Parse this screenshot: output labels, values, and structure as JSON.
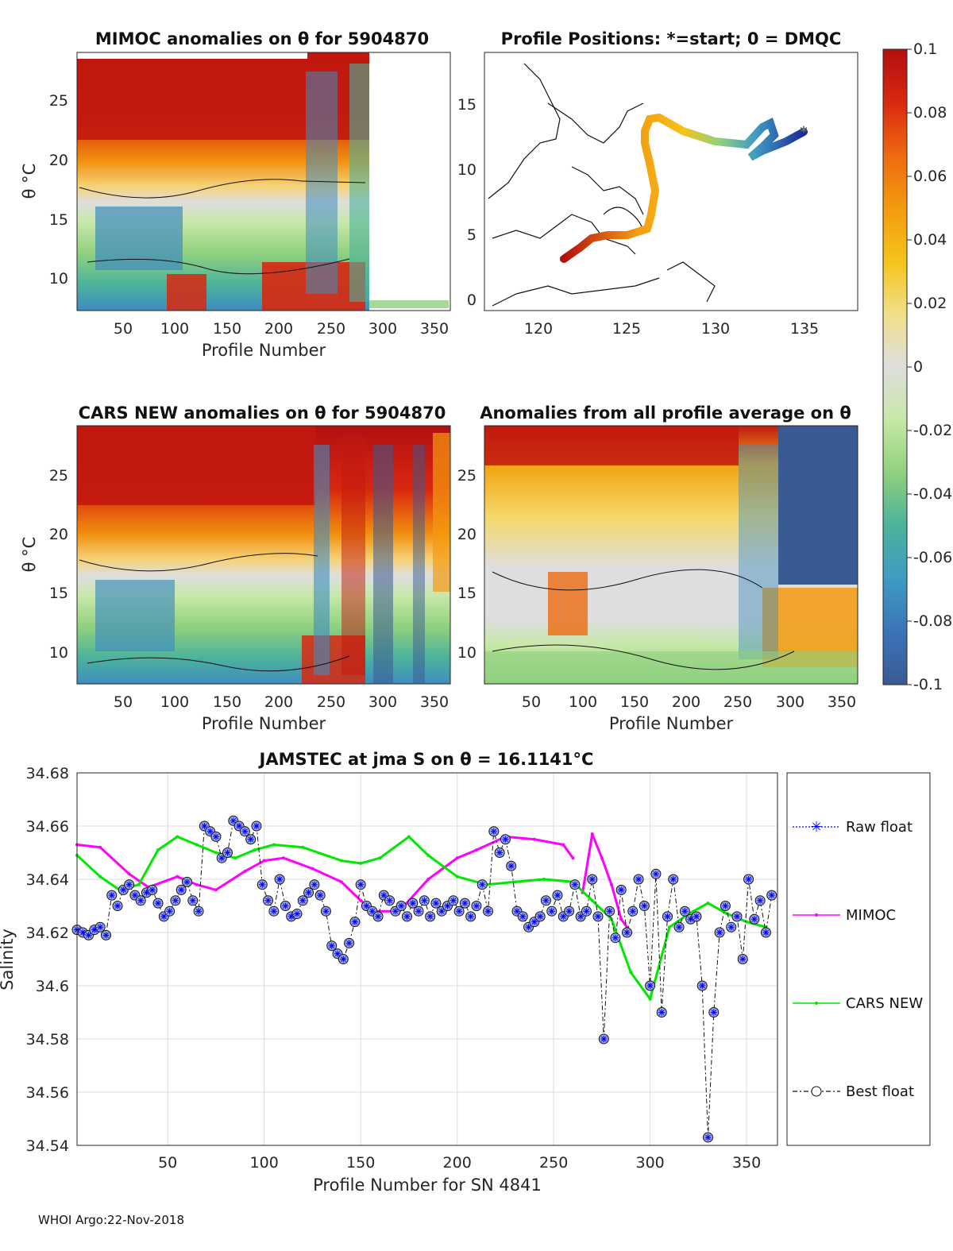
{
  "footer": "WHOI Argo:22-Nov-2018",
  "colorbar": {
    "ticks": [
      "0.1",
      "0.08",
      "0.06",
      "0.04",
      "0.02",
      "0",
      "-0.02",
      "-0.04",
      "-0.06",
      "-0.08",
      "-0.1"
    ],
    "colors": [
      "#3a5a93",
      "#3b74b8",
      "#3f9bc3",
      "#4cb29b",
      "#8fd07e",
      "#c7e8a8",
      "#dedede",
      "#f0e08a",
      "#f5c31a",
      "#f59a0f",
      "#ee6a10",
      "#d8280f",
      "#b20f10"
    ]
  },
  "panels": {
    "mimoc_anom": {
      "title": "MIMOC anomalies on θ  for 5904870",
      "xlabel": "Profile Number",
      "ylabel": "θ °C",
      "xticks": [
        "50",
        "100",
        "150",
        "200",
        "250",
        "300",
        "350"
      ],
      "yticks": [
        "10",
        "15",
        "20",
        "25"
      ]
    },
    "positions": {
      "title": "Profile Positions: *=start; 0 = DMQC",
      "xticks": [
        "120",
        "125",
        "130",
        "135"
      ],
      "yticks": [
        "0",
        "5",
        "10",
        "15"
      ]
    },
    "cars_anom": {
      "title": "CARS NEW anomalies on θ for 5904870",
      "xlabel": "Profile Number",
      "ylabel": "θ °C",
      "xticks": [
        "50",
        "100",
        "150",
        "200",
        "250",
        "300",
        "350"
      ],
      "yticks": [
        "10",
        "15",
        "20",
        "25"
      ]
    },
    "avg_anom": {
      "title": "Anomalies from all profile average on θ",
      "xlabel": "Profile Number",
      "xticks": [
        "50",
        "100",
        "150",
        "200",
        "250",
        "300",
        "350"
      ],
      "yticks": [
        "10",
        "15",
        "20",
        "25"
      ]
    }
  },
  "chart_data": {
    "type": "line",
    "title": "JAMSTEC at jma S on θ = 16.1141°C",
    "xlabel": "Profile Number for SN 4841",
    "ylabel": "Salinity",
    "xlim": [
      3,
      366
    ],
    "ylim": [
      34.54,
      34.68
    ],
    "xticks": [
      "50",
      "100",
      "150",
      "200",
      "250",
      "300",
      "350"
    ],
    "yticks": [
      "34.54",
      "34.56",
      "34.58",
      "34.6",
      "34.62",
      "34.64",
      "34.66",
      "34.68"
    ],
    "legend": [
      "Raw float",
      "MIMOC",
      "CARS NEW",
      "Best float"
    ],
    "series": [
      {
        "name": "MIMOC",
        "color": "#ff00ff",
        "x": [
          3,
          15,
          30,
          40,
          55,
          65,
          75,
          90,
          100,
          110,
          125,
          140,
          150,
          158,
          170,
          185,
          200,
          210,
          225,
          240,
          255,
          260
        ],
        "y": [
          34.653,
          34.652,
          34.642,
          34.637,
          34.641,
          34.638,
          34.636,
          34.643,
          34.647,
          34.648,
          34.644,
          34.639,
          34.632,
          34.628,
          34.628,
          34.64,
          34.648,
          34.651,
          34.656,
          34.655,
          34.653,
          34.648
        ]
      },
      {
        "name": "MIMOC",
        "color": "#ff00ff",
        "x": [
          265,
          270,
          275,
          280,
          285,
          290
        ],
        "y": [
          34.635,
          34.657,
          34.648,
          34.638,
          34.625,
          34.62
        ]
      },
      {
        "name": "CARS NEW",
        "color": "#00e800",
        "x": [
          3,
          15,
          25,
          35,
          45,
          55,
          65,
          75,
          85,
          95,
          105,
          120,
          140,
          150,
          160,
          175,
          185,
          200,
          215,
          230,
          245,
          260,
          270,
          280,
          290,
          300,
          310,
          320,
          330,
          340,
          350,
          360
        ],
        "y": [
          34.649,
          34.641,
          34.636,
          34.638,
          34.651,
          34.656,
          34.653,
          34.65,
          34.648,
          34.651,
          34.653,
          34.652,
          34.647,
          34.646,
          34.648,
          34.656,
          34.649,
          34.641,
          34.638,
          34.639,
          34.64,
          34.639,
          34.632,
          34.625,
          34.605,
          34.595,
          34.622,
          34.627,
          34.631,
          34.627,
          34.624,
          34.622
        ]
      },
      {
        "name": "Best float",
        "color": "#3333cc",
        "x": [
          3,
          6,
          9,
          12,
          15,
          18,
          21,
          24,
          27,
          30,
          33,
          36,
          39,
          42,
          45,
          48,
          51,
          54,
          57,
          60,
          63,
          66,
          69,
          72,
          75,
          78,
          81,
          84,
          87,
          90,
          93,
          96,
          99,
          102,
          105,
          108,
          111,
          114,
          117,
          120,
          123,
          126,
          129,
          132,
          135,
          138,
          141,
          144,
          147,
          150,
          153,
          156,
          159,
          162,
          165,
          168,
          171,
          174,
          177,
          180,
          183,
          186,
          189,
          192,
          195,
          198,
          201,
          204,
          207,
          210,
          213,
          216,
          219,
          222,
          225,
          228,
          231,
          234,
          237,
          240,
          243,
          246,
          249,
          252,
          255,
          258,
          261,
          264,
          267,
          270,
          273,
          276,
          279,
          282,
          285,
          288,
          291,
          294,
          297,
          300,
          303,
          306,
          309,
          312,
          315,
          318,
          321,
          324,
          327,
          330,
          333,
          336,
          339,
          342,
          345,
          348,
          351,
          354,
          357,
          360,
          363
        ],
        "y": [
          34.621,
          34.62,
          34.619,
          34.621,
          34.622,
          34.619,
          34.634,
          34.63,
          34.636,
          34.638,
          34.634,
          34.632,
          34.635,
          34.636,
          34.631,
          34.626,
          34.628,
          34.632,
          34.636,
          34.639,
          34.632,
          34.628,
          34.66,
          34.658,
          34.656,
          34.648,
          34.65,
          34.662,
          34.66,
          34.658,
          34.655,
          34.66,
          34.638,
          34.632,
          34.628,
          34.64,
          34.63,
          34.626,
          34.627,
          34.632,
          34.635,
          34.638,
          34.634,
          34.628,
          34.615,
          34.612,
          34.61,
          34.616,
          34.624,
          34.638,
          34.63,
          34.628,
          34.626,
          34.634,
          34.632,
          34.628,
          34.63,
          34.626,
          34.631,
          34.628,
          34.632,
          34.626,
          34.631,
          34.628,
          34.63,
          34.632,
          34.628,
          34.631,
          34.626,
          34.63,
          34.638,
          34.628,
          34.658,
          34.65,
          34.655,
          34.645,
          34.628,
          34.626,
          34.622,
          34.624,
          34.626,
          34.632,
          34.628,
          34.634,
          34.626,
          34.628,
          34.638,
          34.626,
          34.628,
          34.64,
          34.626,
          34.58,
          34.628,
          34.618,
          34.636,
          34.62,
          34.628,
          34.64,
          34.63,
          34.6,
          34.642,
          34.59,
          34.626,
          34.64,
          34.622,
          34.628,
          34.625,
          34.626,
          34.6,
          34.543,
          34.59,
          34.62,
          34.63,
          34.622,
          34.626,
          34.61,
          34.64,
          34.625,
          34.632,
          34.62,
          34.634
        ]
      },
      {
        "name": "Raw float",
        "color": "#0000ff",
        "x": [
          3,
          6,
          9,
          12,
          15,
          18,
          21,
          24,
          27,
          30,
          33,
          36,
          39,
          42,
          45,
          48,
          51,
          54,
          57,
          60,
          63,
          66,
          69,
          72,
          75,
          78,
          81,
          84,
          87,
          90,
          93,
          96,
          99,
          102,
          105,
          108,
          111,
          114,
          117,
          120,
          123,
          126,
          129,
          132,
          135,
          138,
          141,
          144,
          147,
          150,
          153,
          156,
          159,
          162,
          165,
          168,
          171,
          174,
          177,
          180,
          183,
          186,
          189,
          192,
          195,
          198,
          201,
          204,
          207,
          210,
          213,
          216,
          219,
          222,
          225,
          228,
          231,
          234,
          237,
          240,
          243,
          246,
          249,
          252,
          255,
          258,
          261,
          264,
          267,
          270,
          273,
          276,
          279,
          282,
          285,
          288,
          291,
          294,
          297,
          300,
          303,
          306,
          309,
          312,
          315,
          318,
          321,
          324,
          327,
          330,
          333,
          336,
          339,
          342,
          345,
          348,
          351,
          354,
          357,
          360,
          363
        ],
        "y": [
          34.621,
          34.62,
          34.619,
          34.621,
          34.622,
          34.619,
          34.634,
          34.63,
          34.636,
          34.638,
          34.634,
          34.632,
          34.635,
          34.636,
          34.631,
          34.626,
          34.628,
          34.632,
          34.636,
          34.639,
          34.632,
          34.628,
          34.66,
          34.658,
          34.656,
          34.648,
          34.65,
          34.662,
          34.66,
          34.658,
          34.655,
          34.66,
          34.638,
          34.632,
          34.628,
          34.64,
          34.63,
          34.626,
          34.627,
          34.632,
          34.635,
          34.638,
          34.634,
          34.628,
          34.615,
          34.612,
          34.61,
          34.616,
          34.624,
          34.638,
          34.63,
          34.628,
          34.626,
          34.634,
          34.632,
          34.628,
          34.63,
          34.626,
          34.631,
          34.628,
          34.632,
          34.626,
          34.631,
          34.628,
          34.63,
          34.632,
          34.628,
          34.631,
          34.626,
          34.63,
          34.638,
          34.628,
          34.658,
          34.65,
          34.655,
          34.645,
          34.628,
          34.626,
          34.622,
          34.624,
          34.626,
          34.632,
          34.628,
          34.634,
          34.626,
          34.628,
          34.638,
          34.626,
          34.628,
          34.64,
          34.626,
          34.58,
          34.628,
          34.618,
          34.636,
          34.62,
          34.628,
          34.64,
          34.63,
          34.6,
          34.642,
          34.59,
          34.626,
          34.64,
          34.622,
          34.628,
          34.625,
          34.626,
          34.6,
          34.543,
          34.59,
          34.62,
          34.63,
          34.622,
          34.626,
          34.61,
          34.64,
          34.625,
          34.632,
          34.62,
          34.634
        ]
      }
    ]
  }
}
